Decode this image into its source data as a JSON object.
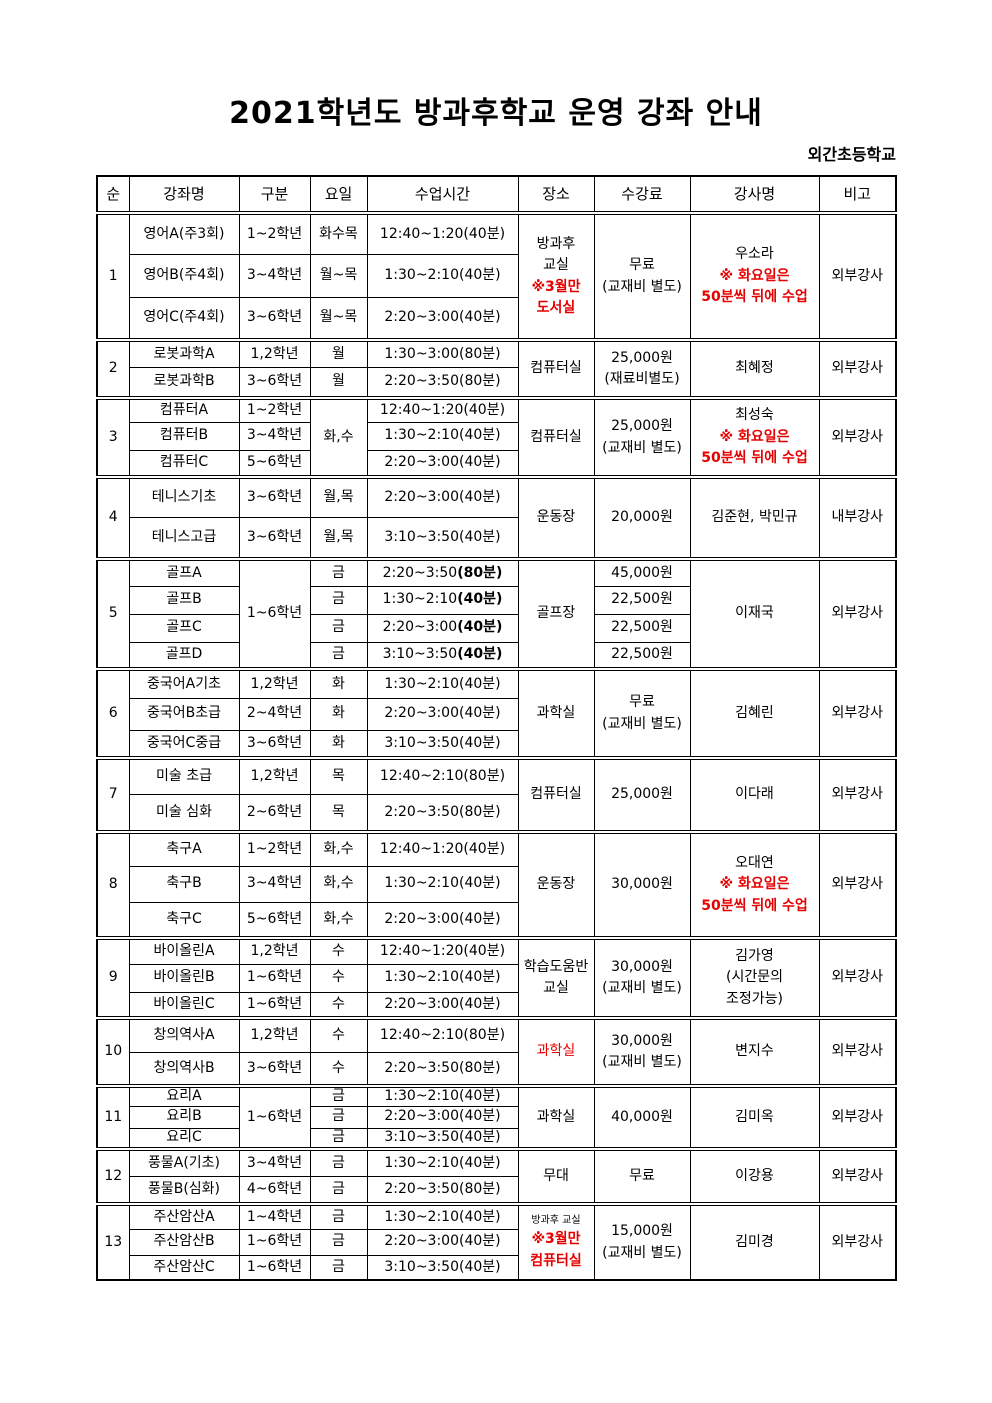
{
  "title": "2021학년도 방과후학교 운영 강좌 안내",
  "school": "외간초등학교",
  "accent_color": "#e60000",
  "headers": [
    "순",
    "강좌명",
    "구분",
    "요일",
    "수업시간",
    "장소",
    "수강료",
    "강사명",
    "비고"
  ],
  "groups": [
    {
      "num": "1",
      "rows": [
        {
          "name": "영어A(주3회)",
          "grade": "1~2학년",
          "day": "화수목",
          "time": "12:40~1:20(40분)"
        },
        {
          "name": "영어B(주4회)",
          "grade": "3~4학년",
          "day": "월~목",
          "time": "1:30~2:10(40분)"
        },
        {
          "name": "영어C(주4회)",
          "grade": "3~6학년",
          "day": "월~목",
          "time": "2:20~3:00(40분)"
        }
      ],
      "location": [
        {
          "text": "방과후"
        },
        {
          "text": "교실"
        },
        {
          "text": "※3월만",
          "red": true,
          "bold": true
        },
        {
          "text": "도서실",
          "red": true,
          "bold": true
        }
      ],
      "fee": [
        {
          "text": "무료"
        },
        {
          "text": "(교재비 별도)"
        }
      ],
      "instructor": [
        {
          "text": "우소라"
        },
        {
          "text": "※ 화요일은",
          "red": true,
          "bold": true
        },
        {
          "text": "50분씩 뒤에 수업",
          "red": true,
          "bold": true
        }
      ],
      "note": "외부강사"
    },
    {
      "num": "2",
      "rows": [
        {
          "name": "로봇과학A",
          "grade": "1,2학년",
          "day": "월",
          "time": "1:30~3:00(80분)"
        },
        {
          "name": "로봇과학B",
          "grade": "3~6학년",
          "day": "월",
          "time": "2:20~3:50(80분)"
        }
      ],
      "location": [
        {
          "text": "컴퓨터실"
        }
      ],
      "fee": [
        {
          "text": "25,000원"
        },
        {
          "text": "(재료비별도)"
        }
      ],
      "instructor": [
        {
          "text": "최혜정"
        }
      ],
      "note": "외부강사"
    },
    {
      "num": "3",
      "day_merged": true,
      "rows": [
        {
          "name": "컴퓨터A",
          "grade": "1~2학년",
          "day": "화,수",
          "time": "12:40~1:20(40분)"
        },
        {
          "name": "컴퓨터B",
          "grade": "3~4학년",
          "time": "1:30~2:10(40분)"
        },
        {
          "name": "컴퓨터C",
          "grade": "5~6학년",
          "time": "2:20~3:00(40분)"
        }
      ],
      "location": [
        {
          "text": "컴퓨터실"
        }
      ],
      "fee": [
        {
          "text": "25,000원"
        },
        {
          "text": "(교재비 별도)"
        }
      ],
      "instructor": [
        {
          "text": "최성숙"
        },
        {
          "text": "※ 화요일은",
          "red": true,
          "bold": true
        },
        {
          "text": "50분씩 뒤에 수업",
          "red": true,
          "bold": true
        }
      ],
      "note": "외부강사"
    },
    {
      "num": "4",
      "rows": [
        {
          "name": "테니스기초",
          "grade": "3~6학년",
          "day": "월,목",
          "time": "2:20~3:00(40분)"
        },
        {
          "name": "테니스고급",
          "grade": "3~6학년",
          "day": "월,목",
          "time": "3:10~3:50(40분)"
        }
      ],
      "location": [
        {
          "text": "운동장"
        }
      ],
      "fee": [
        {
          "text": "20,000원"
        }
      ],
      "instructor": [
        {
          "text": "김준현, 박민규"
        }
      ],
      "note": "내부강사"
    },
    {
      "num": "5",
      "grade_merged": true,
      "fee_per_row": true,
      "bold_duration": true,
      "rows": [
        {
          "name": "골프A",
          "grade": "1~6학년",
          "day": "금",
          "time": "2:20~3:50(80분)",
          "fee": "45,000원"
        },
        {
          "name": "골프B",
          "day": "금",
          "time": "1:30~2:10(40분)",
          "fee": "22,500원"
        },
        {
          "name": "골프C",
          "day": "금",
          "time": "2:20~3:00(40분)",
          "fee": "22,500원"
        },
        {
          "name": "골프D",
          "day": "금",
          "time": "3:10~3:50(40분)",
          "fee": "22,500원"
        }
      ],
      "location": [
        {
          "text": "골프장"
        }
      ],
      "instructor": [
        {
          "text": "이재국"
        }
      ],
      "note": "외부강사"
    },
    {
      "num": "6",
      "rows": [
        {
          "name": "중국어A기초",
          "grade": "1,2학년",
          "day": "화",
          "time": "1:30~2:10(40분)"
        },
        {
          "name": "중국어B초급",
          "grade": "2~4학년",
          "day": "화",
          "time": "2:20~3:00(40분)"
        },
        {
          "name": "중국어C중급",
          "grade": "3~6학년",
          "day": "화",
          "time": "3:10~3:50(40분)"
        }
      ],
      "location": [
        {
          "text": "과학실"
        }
      ],
      "fee": [
        {
          "text": "무료"
        },
        {
          "text": "(교재비 별도)"
        }
      ],
      "instructor": [
        {
          "text": "김혜린"
        }
      ],
      "note": "외부강사"
    },
    {
      "num": "7",
      "rows": [
        {
          "name": "미술 초급",
          "grade": "1,2학년",
          "day": "목",
          "time": "12:40~2:10(80분)"
        },
        {
          "name": "미술 심화",
          "grade": "2~6학년",
          "day": "목",
          "time": "2:20~3:50(80분)"
        }
      ],
      "location": [
        {
          "text": "컴퓨터실"
        }
      ],
      "fee": [
        {
          "text": "25,000원"
        }
      ],
      "instructor": [
        {
          "text": "이다래"
        }
      ],
      "note": "외부강사"
    },
    {
      "num": "8",
      "rows": [
        {
          "name": "축구A",
          "grade": "1~2학년",
          "day": "화,수",
          "time": "12:40~1:20(40분)"
        },
        {
          "name": "축구B",
          "grade": "3~4학년",
          "day": "화,수",
          "time": "1:30~2:10(40분)"
        },
        {
          "name": "축구C",
          "grade": "5~6학년",
          "day": "화,수",
          "time": "2:20~3:00(40분)"
        }
      ],
      "location": [
        {
          "text": "운동장"
        }
      ],
      "fee": [
        {
          "text": "30,000원"
        }
      ],
      "instructor": [
        {
          "text": "오대연"
        },
        {
          "text": "※ 화요일은",
          "red": true,
          "bold": true
        },
        {
          "text": "50분씩 뒤에 수업",
          "red": true,
          "bold": true
        }
      ],
      "note": "외부강사"
    },
    {
      "num": "9",
      "rows": [
        {
          "name": "바이올린A",
          "grade": "1,2학년",
          "day": "수",
          "time": "12:40~1:20(40분)"
        },
        {
          "name": "바이올린B",
          "grade": "1~6학년",
          "day": "수",
          "time": "1:30~2:10(40분)"
        },
        {
          "name": "바이올린C",
          "grade": "1~6학년",
          "day": "수",
          "time": "2:20~3:00(40분)"
        }
      ],
      "location": [
        {
          "text": "학습도움반"
        },
        {
          "text": "교실"
        }
      ],
      "fee": [
        {
          "text": "30,000원"
        },
        {
          "text": "(교재비 별도)"
        }
      ],
      "instructor": [
        {
          "text": "김가영"
        },
        {
          "text": "(시간문의"
        },
        {
          "text": "조정가능)"
        }
      ],
      "note": "외부강사"
    },
    {
      "num": "10",
      "rows": [
        {
          "name": "창의역사A",
          "grade": "1,2학년",
          "day": "수",
          "time": "12:40~2:10(80분)"
        },
        {
          "name": "창의역사B",
          "grade": "3~6학년",
          "day": "수",
          "time": "2:20~3:50(80분)"
        }
      ],
      "location": [
        {
          "text": "과학실",
          "red": true
        }
      ],
      "fee": [
        {
          "text": "30,000원"
        },
        {
          "text": "(교재비 별도)"
        }
      ],
      "instructor": [
        {
          "text": "변지수"
        }
      ],
      "note": "외부강사"
    },
    {
      "num": "11",
      "grade_merged": true,
      "rows": [
        {
          "name": "요리A",
          "grade": "1~6학년",
          "day": "금",
          "time": "1:30~2:10(40분)"
        },
        {
          "name": "요리B",
          "day": "금",
          "time": "2:20~3:00(40분)"
        },
        {
          "name": "요리C",
          "day": "금",
          "time": "3:10~3:50(40분)"
        }
      ],
      "location": [
        {
          "text": "과학실"
        }
      ],
      "fee": [
        {
          "text": "40,000원"
        }
      ],
      "instructor": [
        {
          "text": "김미옥"
        }
      ],
      "note": "외부강사"
    },
    {
      "num": "12",
      "rows": [
        {
          "name": "풍물A(기초)",
          "grade": "3~4학년",
          "day": "금",
          "time": "1:30~2:10(40분)"
        },
        {
          "name": "풍물B(심화)",
          "grade": "4~6학년",
          "day": "금",
          "time": "2:20~3:50(80분)"
        }
      ],
      "location": [
        {
          "text": "무대"
        }
      ],
      "fee": [
        {
          "text": "무료"
        }
      ],
      "instructor": [
        {
          "text": "이강용"
        }
      ],
      "note": "외부강사"
    },
    {
      "num": "13",
      "rows": [
        {
          "name": "주산암산A",
          "grade": "1~4학년",
          "day": "금",
          "time": "1:30~2:10(40분)"
        },
        {
          "name": "주산암산B",
          "grade": "1~6학년",
          "day": "금",
          "time": "2:20~3:00(40분)"
        },
        {
          "name": "주산암산C",
          "grade": "1~6학년",
          "day": "금",
          "time": "3:10~3:50(40분)"
        }
      ],
      "location": [
        {
          "text": "방과후 교실",
          "small": true
        },
        {
          "text": "※3월만",
          "red": true,
          "bold": true
        },
        {
          "text": "컴퓨터실",
          "red": true,
          "bold": true
        }
      ],
      "fee": [
        {
          "text": "15,000원"
        },
        {
          "text": "(교재비 별도)"
        }
      ],
      "instructor": [
        {
          "text": "김미경"
        }
      ],
      "note": "외부강사"
    }
  ]
}
